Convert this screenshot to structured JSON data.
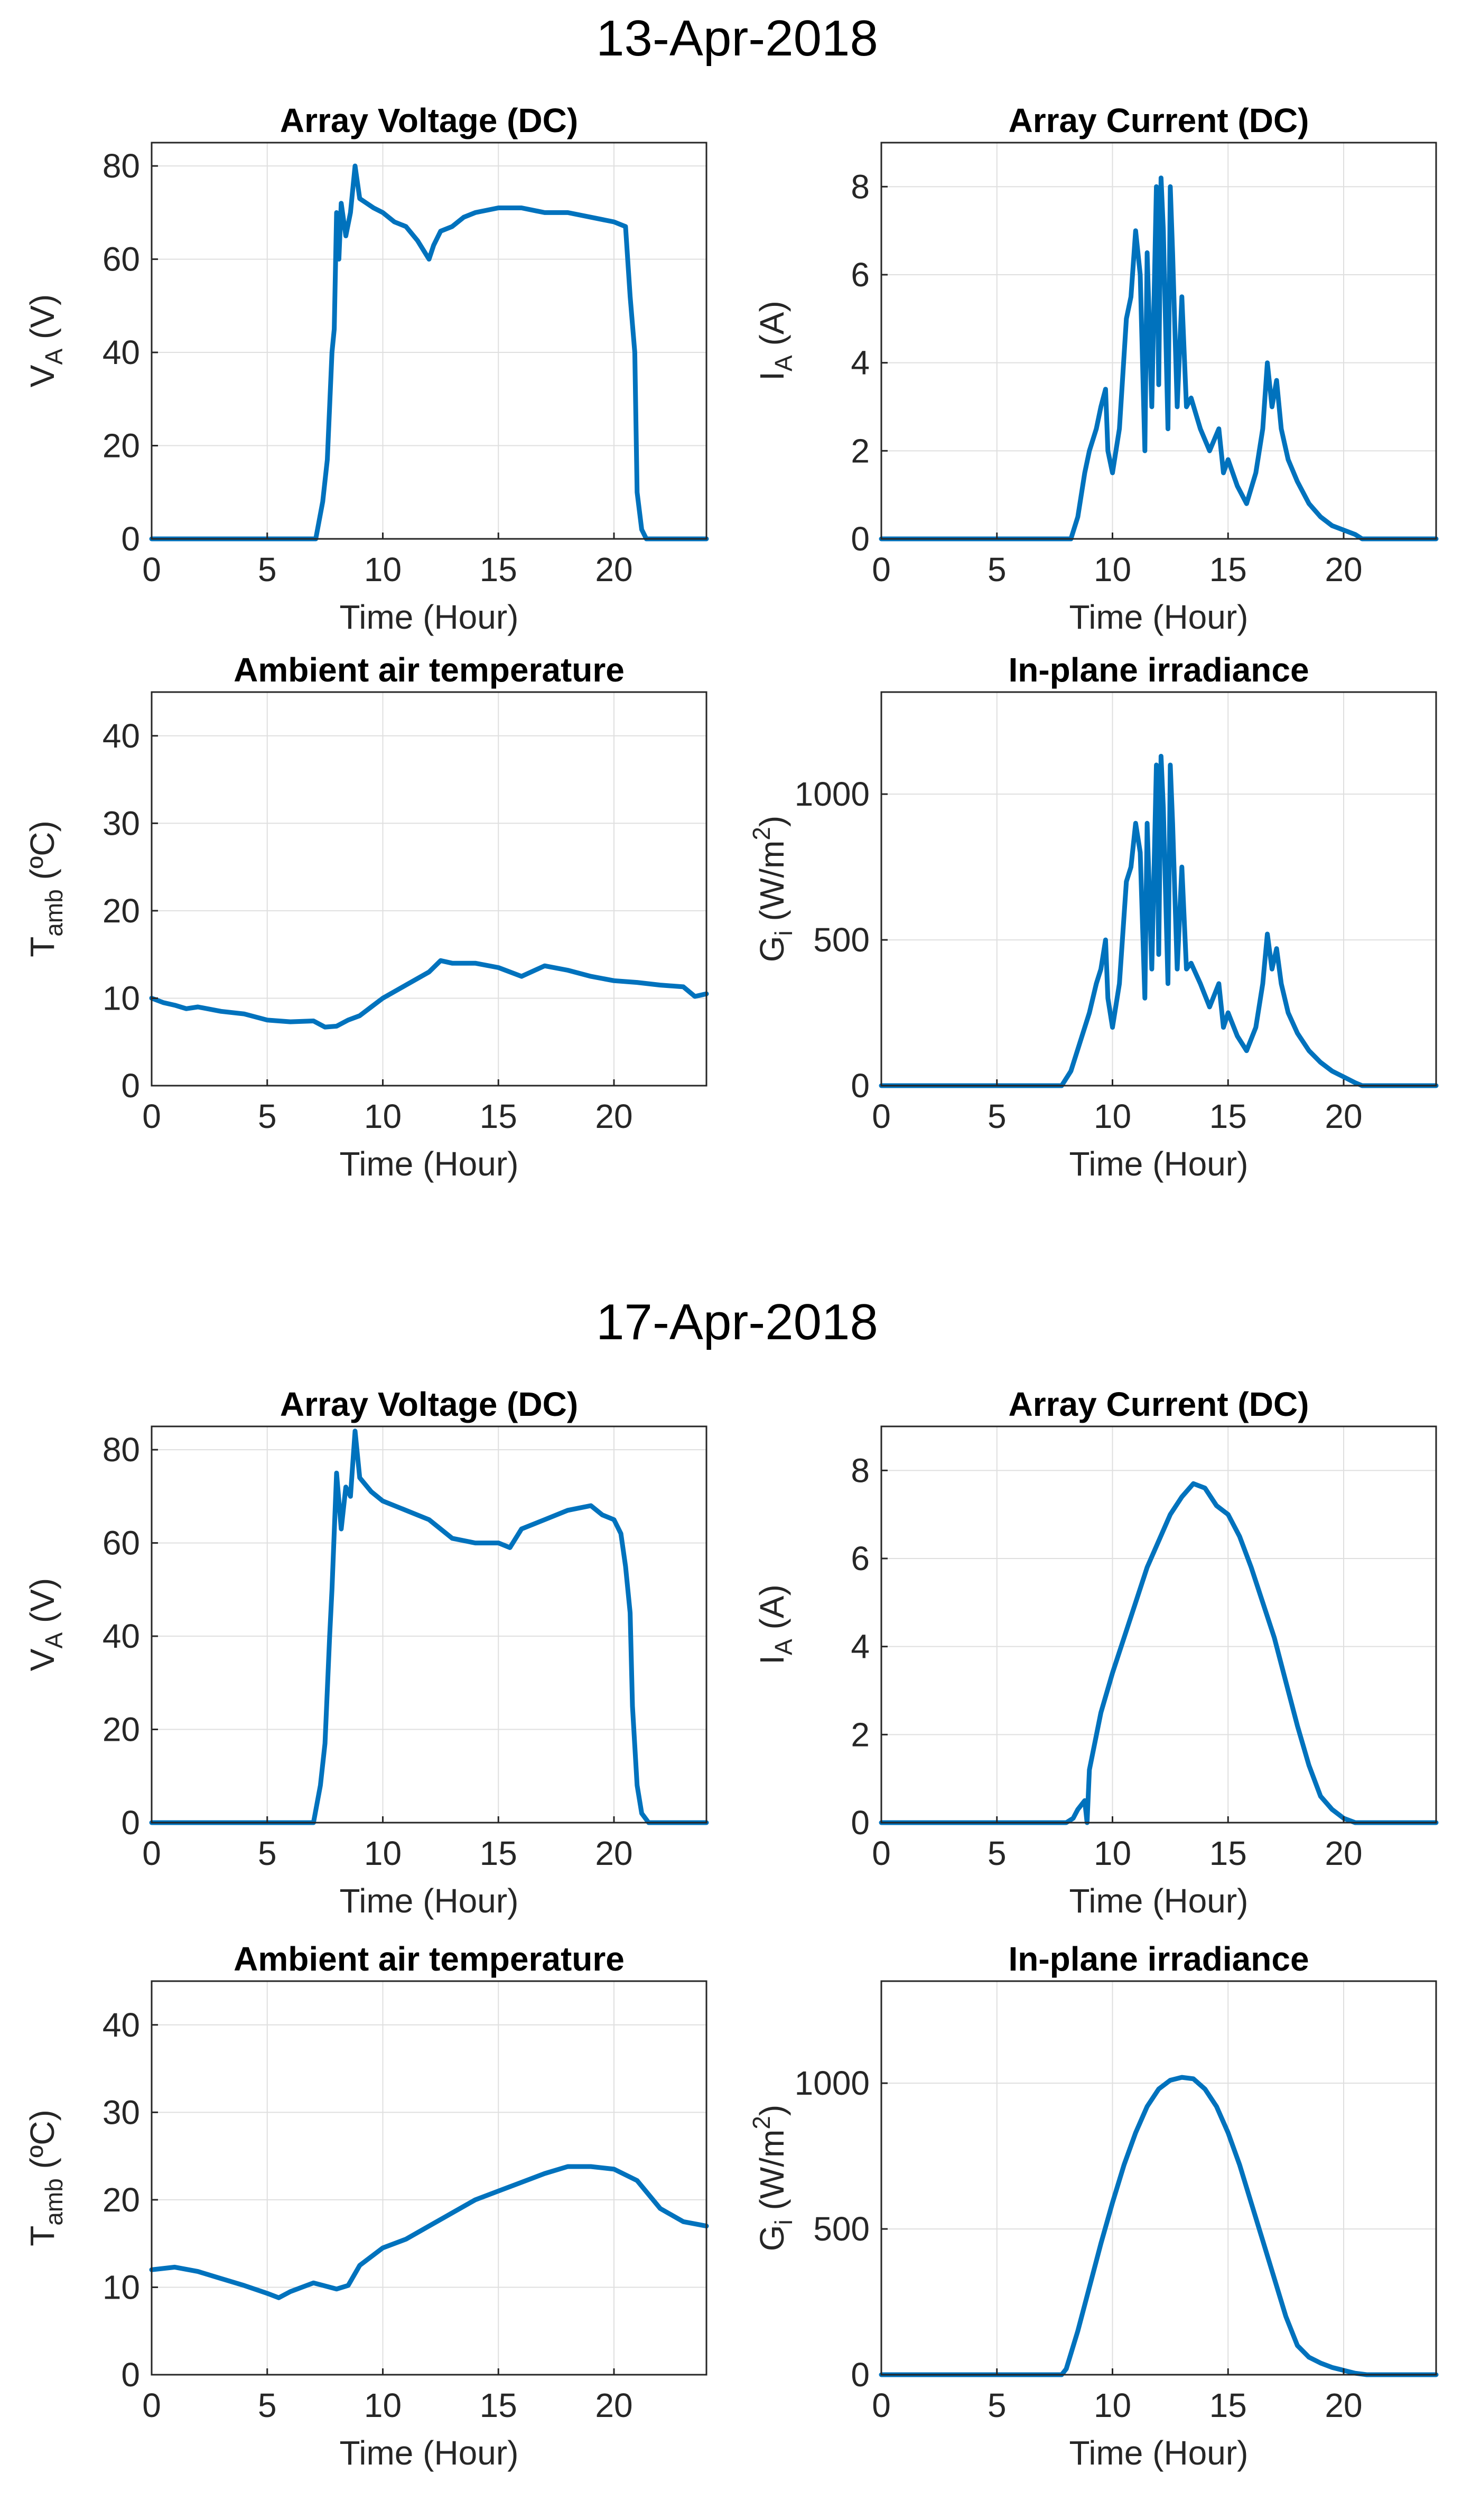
{
  "figures": [
    {
      "title": "13-Apr-2018",
      "panels": [
        "v",
        "i",
        "t",
        "g"
      ]
    },
    {
      "title": "17-Apr-2018",
      "panels": [
        "v",
        "i",
        "t",
        "g"
      ]
    }
  ],
  "colors": {
    "series": "#0072bd",
    "grid": "#dfdfdf",
    "axis": "#262626"
  },
  "chart_data": [
    {
      "id": "apr13-voltage",
      "type": "line",
      "title": "Array Voltage (DC)",
      "xlabel": "Time (Hour)",
      "ylabel": "V_A (V)",
      "xlim": [
        0,
        24
      ],
      "ylim": [
        0,
        85
      ],
      "xticks": [
        0,
        5,
        10,
        15,
        20
      ],
      "yticks": [
        0,
        20,
        40,
        60,
        80
      ],
      "grid": true,
      "x": [
        0,
        7.1,
        7.4,
        7.6,
        7.8,
        7.9,
        8.0,
        8.1,
        8.2,
        8.4,
        8.6,
        8.8,
        9.0,
        9.3,
        9.6,
        10.0,
        10.5,
        11.0,
        11.5,
        12.0,
        12.2,
        12.5,
        13.0,
        13.5,
        14.0,
        15.0,
        16.0,
        17.0,
        18.0,
        19.0,
        20.0,
        20.5,
        20.7,
        20.9,
        21.0,
        21.2,
        21.4,
        24
      ],
      "y": [
        0,
        0,
        8,
        17,
        40,
        45,
        70,
        60,
        72,
        65,
        70,
        80,
        73,
        72,
        71,
        70,
        68,
        67,
        64,
        60,
        63,
        66,
        67,
        69,
        70,
        71,
        71,
        70,
        70,
        69,
        68,
        67,
        52,
        40,
        10,
        2,
        0,
        0
      ]
    },
    {
      "id": "apr13-current",
      "type": "line",
      "title": "Array Current (DC)",
      "xlabel": "Time (Hour)",
      "ylabel": "I_A (A)",
      "xlim": [
        0,
        24
      ],
      "ylim": [
        0,
        9
      ],
      "xticks": [
        0,
        5,
        10,
        15,
        20
      ],
      "yticks": [
        0,
        2,
        4,
        6,
        8
      ],
      "grid": true,
      "x": [
        0,
        8.2,
        8.5,
        8.8,
        9.0,
        9.3,
        9.5,
        9.7,
        9.8,
        10.0,
        10.3,
        10.6,
        10.8,
        11.0,
        11.2,
        11.4,
        11.5,
        11.7,
        11.9,
        12.0,
        12.1,
        12.2,
        12.4,
        12.5,
        12.6,
        12.8,
        13.0,
        13.2,
        13.4,
        13.8,
        14.2,
        14.6,
        14.8,
        15.0,
        15.4,
        15.8,
        16.2,
        16.5,
        16.7,
        16.9,
        17.1,
        17.3,
        17.6,
        18.0,
        18.5,
        19.0,
        19.5,
        20.0,
        20.5,
        20.8,
        24
      ],
      "y": [
        0,
        0,
        0.5,
        1.5,
        2.0,
        2.5,
        3.0,
        3.4,
        2.0,
        1.5,
        2.5,
        5.0,
        5.5,
        7.0,
        6.0,
        2.0,
        6.5,
        3.0,
        8.0,
        3.5,
        8.2,
        7.0,
        2.5,
        8.0,
        6.5,
        3.0,
        5.5,
        3.0,
        3.2,
        2.5,
        2.0,
        2.5,
        1.5,
        1.8,
        1.2,
        0.8,
        1.5,
        2.5,
        4.0,
        3.0,
        3.6,
        2.5,
        1.8,
        1.3,
        0.8,
        0.5,
        0.3,
        0.2,
        0.1,
        0,
        0
      ]
    },
    {
      "id": "apr13-temp",
      "type": "line",
      "title": "Ambient air temperature",
      "xlabel": "Time (Hour)",
      "ylabel": "T_amb (ºC)",
      "xlim": [
        0,
        24
      ],
      "ylim": [
        0,
        45
      ],
      "xticks": [
        0,
        5,
        10,
        15,
        20
      ],
      "yticks": [
        0,
        10,
        20,
        30,
        40
      ],
      "grid": true,
      "x": [
        0,
        0.5,
        1,
        1.5,
        2,
        3,
        4,
        5,
        6,
        7,
        7.5,
        8,
        8.5,
        9,
        9.5,
        10,
        11,
        12,
        12.5,
        13,
        14,
        15,
        16,
        17,
        18,
        19,
        20,
        21,
        22,
        23,
        23.5,
        24
      ],
      "y": [
        10,
        9.5,
        9.2,
        8.8,
        9,
        8.5,
        8.2,
        7.5,
        7.3,
        7.4,
        6.7,
        6.8,
        7.5,
        8,
        9,
        10,
        11.5,
        13,
        14.3,
        14,
        14,
        13.5,
        12.5,
        13.7,
        13.2,
        12.5,
        12,
        11.8,
        11.5,
        11.3,
        10.2,
        10.5
      ]
    },
    {
      "id": "apr13-irr",
      "type": "line",
      "title": "In-plane irradiance",
      "xlabel": "Time (Hour)",
      "ylabel": "G_i (W/m^2)",
      "xlim": [
        0,
        24
      ],
      "ylim": [
        0,
        1350
      ],
      "xticks": [
        0,
        5,
        10,
        15,
        20
      ],
      "yticks": [
        0,
        500,
        1000
      ],
      "grid": true,
      "x": [
        0,
        7.8,
        8.2,
        8.6,
        9.0,
        9.3,
        9.5,
        9.7,
        9.8,
        10.0,
        10.3,
        10.6,
        10.8,
        11.0,
        11.2,
        11.4,
        11.5,
        11.7,
        11.9,
        12.0,
        12.1,
        12.2,
        12.4,
        12.5,
        12.6,
        12.8,
        13.0,
        13.2,
        13.4,
        13.8,
        14.2,
        14.6,
        14.8,
        15.0,
        15.4,
        15.8,
        16.2,
        16.5,
        16.7,
        16.9,
        17.1,
        17.3,
        17.6,
        18.0,
        18.5,
        19.0,
        19.5,
        20.0,
        20.5,
        20.8,
        24
      ],
      "y": [
        0,
        0,
        50,
        150,
        250,
        350,
        400,
        500,
        300,
        200,
        350,
        700,
        750,
        900,
        800,
        300,
        900,
        400,
        1100,
        450,
        1130,
        950,
        350,
        1100,
        900,
        400,
        750,
        400,
        420,
        350,
        270,
        350,
        200,
        250,
        170,
        120,
        200,
        350,
        520,
        400,
        470,
        350,
        250,
        180,
        120,
        80,
        50,
        30,
        10,
        0,
        0
      ]
    },
    {
      "id": "apr17-voltage",
      "type": "line",
      "title": "Array Voltage (DC)",
      "xlabel": "Time (Hour)",
      "ylabel": "V_A (V)",
      "xlim": [
        0,
        24
      ],
      "ylim": [
        0,
        85
      ],
      "xticks": [
        0,
        5,
        10,
        15,
        20
      ],
      "yticks": [
        0,
        20,
        40,
        60,
        80
      ],
      "grid": true,
      "x": [
        0,
        7.0,
        7.3,
        7.5,
        7.7,
        7.8,
        8.0,
        8.2,
        8.4,
        8.6,
        8.8,
        9.0,
        9.5,
        10.0,
        11.0,
        12.0,
        13.0,
        14.0,
        15.0,
        15.5,
        16.0,
        17.0,
        18.0,
        19.0,
        19.5,
        20.0,
        20.3,
        20.5,
        20.7,
        20.8,
        21.0,
        21.2,
        21.5,
        24
      ],
      "y": [
        0,
        0,
        8,
        17,
        40,
        50,
        75,
        63,
        72,
        70,
        84,
        74,
        71,
        69,
        67,
        65,
        61,
        60,
        60,
        59,
        63,
        65,
        67,
        68,
        66,
        65,
        62,
        55,
        45,
        25,
        8,
        2,
        0,
        0
      ]
    },
    {
      "id": "apr17-current",
      "type": "line",
      "title": "Array Current (DC)",
      "xlabel": "Time (Hour)",
      "ylabel": "I_A (A)",
      "xlim": [
        0,
        24
      ],
      "ylim": [
        0,
        9
      ],
      "xticks": [
        0,
        5,
        10,
        15,
        20
      ],
      "yticks": [
        0,
        2,
        4,
        6,
        8
      ],
      "grid": true,
      "x": [
        0,
        8.0,
        8.3,
        8.5,
        8.8,
        8.9,
        9.0,
        9.5,
        10.0,
        10.5,
        11.0,
        11.5,
        12.0,
        12.5,
        13.0,
        13.5,
        14.0,
        14.5,
        15.0,
        15.5,
        16.0,
        16.5,
        17.0,
        17.5,
        18.0,
        18.5,
        19.0,
        19.5,
        20.0,
        20.5,
        21.0,
        24
      ],
      "y": [
        0,
        0,
        0.1,
        0.3,
        0.5,
        0,
        1.2,
        2.5,
        3.4,
        4.2,
        5.0,
        5.8,
        6.4,
        7.0,
        7.4,
        7.7,
        7.6,
        7.2,
        7.0,
        6.5,
        5.8,
        5.0,
        4.2,
        3.2,
        2.2,
        1.3,
        0.6,
        0.3,
        0.1,
        0,
        0,
        0
      ]
    },
    {
      "id": "apr17-temp",
      "type": "line",
      "title": "Ambient air temperature",
      "xlabel": "Time (Hour)",
      "ylabel": "T_amb (ºC)",
      "xlim": [
        0,
        24
      ],
      "ylim": [
        0,
        45
      ],
      "xticks": [
        0,
        5,
        10,
        15,
        20
      ],
      "yticks": [
        0,
        10,
        20,
        30,
        40
      ],
      "grid": true,
      "x": [
        0,
        1,
        2,
        3,
        4,
        5,
        5.5,
        6,
        7,
        8,
        8.5,
        9,
        10,
        11,
        12,
        13,
        14,
        15,
        16,
        17,
        18,
        19,
        20,
        21,
        22,
        23,
        24
      ],
      "y": [
        12,
        12.3,
        11.8,
        11,
        10.2,
        9.3,
        8.8,
        9.5,
        10.5,
        9.8,
        10.2,
        12.5,
        14.5,
        15.5,
        17,
        18.5,
        20,
        21,
        22,
        23,
        23.8,
        23.8,
        23.5,
        22.2,
        19,
        17.5,
        17
      ]
    },
    {
      "id": "apr17-irr",
      "type": "line",
      "title": "In-plane irradiance",
      "xlabel": "Time (Hour)",
      "ylabel": "G_i (W/m^2)",
      "xlim": [
        0,
        24
      ],
      "ylim": [
        0,
        1350
      ],
      "xticks": [
        0,
        5,
        10,
        15,
        20
      ],
      "yticks": [
        0,
        500,
        1000
      ],
      "grid": true,
      "x": [
        0,
        7.8,
        8.0,
        8.5,
        9.0,
        9.5,
        10.0,
        10.5,
        11.0,
        11.5,
        12.0,
        12.5,
        13.0,
        13.5,
        14.0,
        14.5,
        15.0,
        15.5,
        16.0,
        16.5,
        17.0,
        17.5,
        18.0,
        18.5,
        19.0,
        19.5,
        20.0,
        20.5,
        21.0,
        24
      ],
      "y": [
        0,
        0,
        20,
        150,
        300,
        450,
        590,
        720,
        830,
        920,
        980,
        1010,
        1020,
        1015,
        980,
        920,
        830,
        720,
        590,
        460,
        330,
        200,
        100,
        60,
        40,
        25,
        15,
        5,
        0,
        0
      ]
    }
  ]
}
